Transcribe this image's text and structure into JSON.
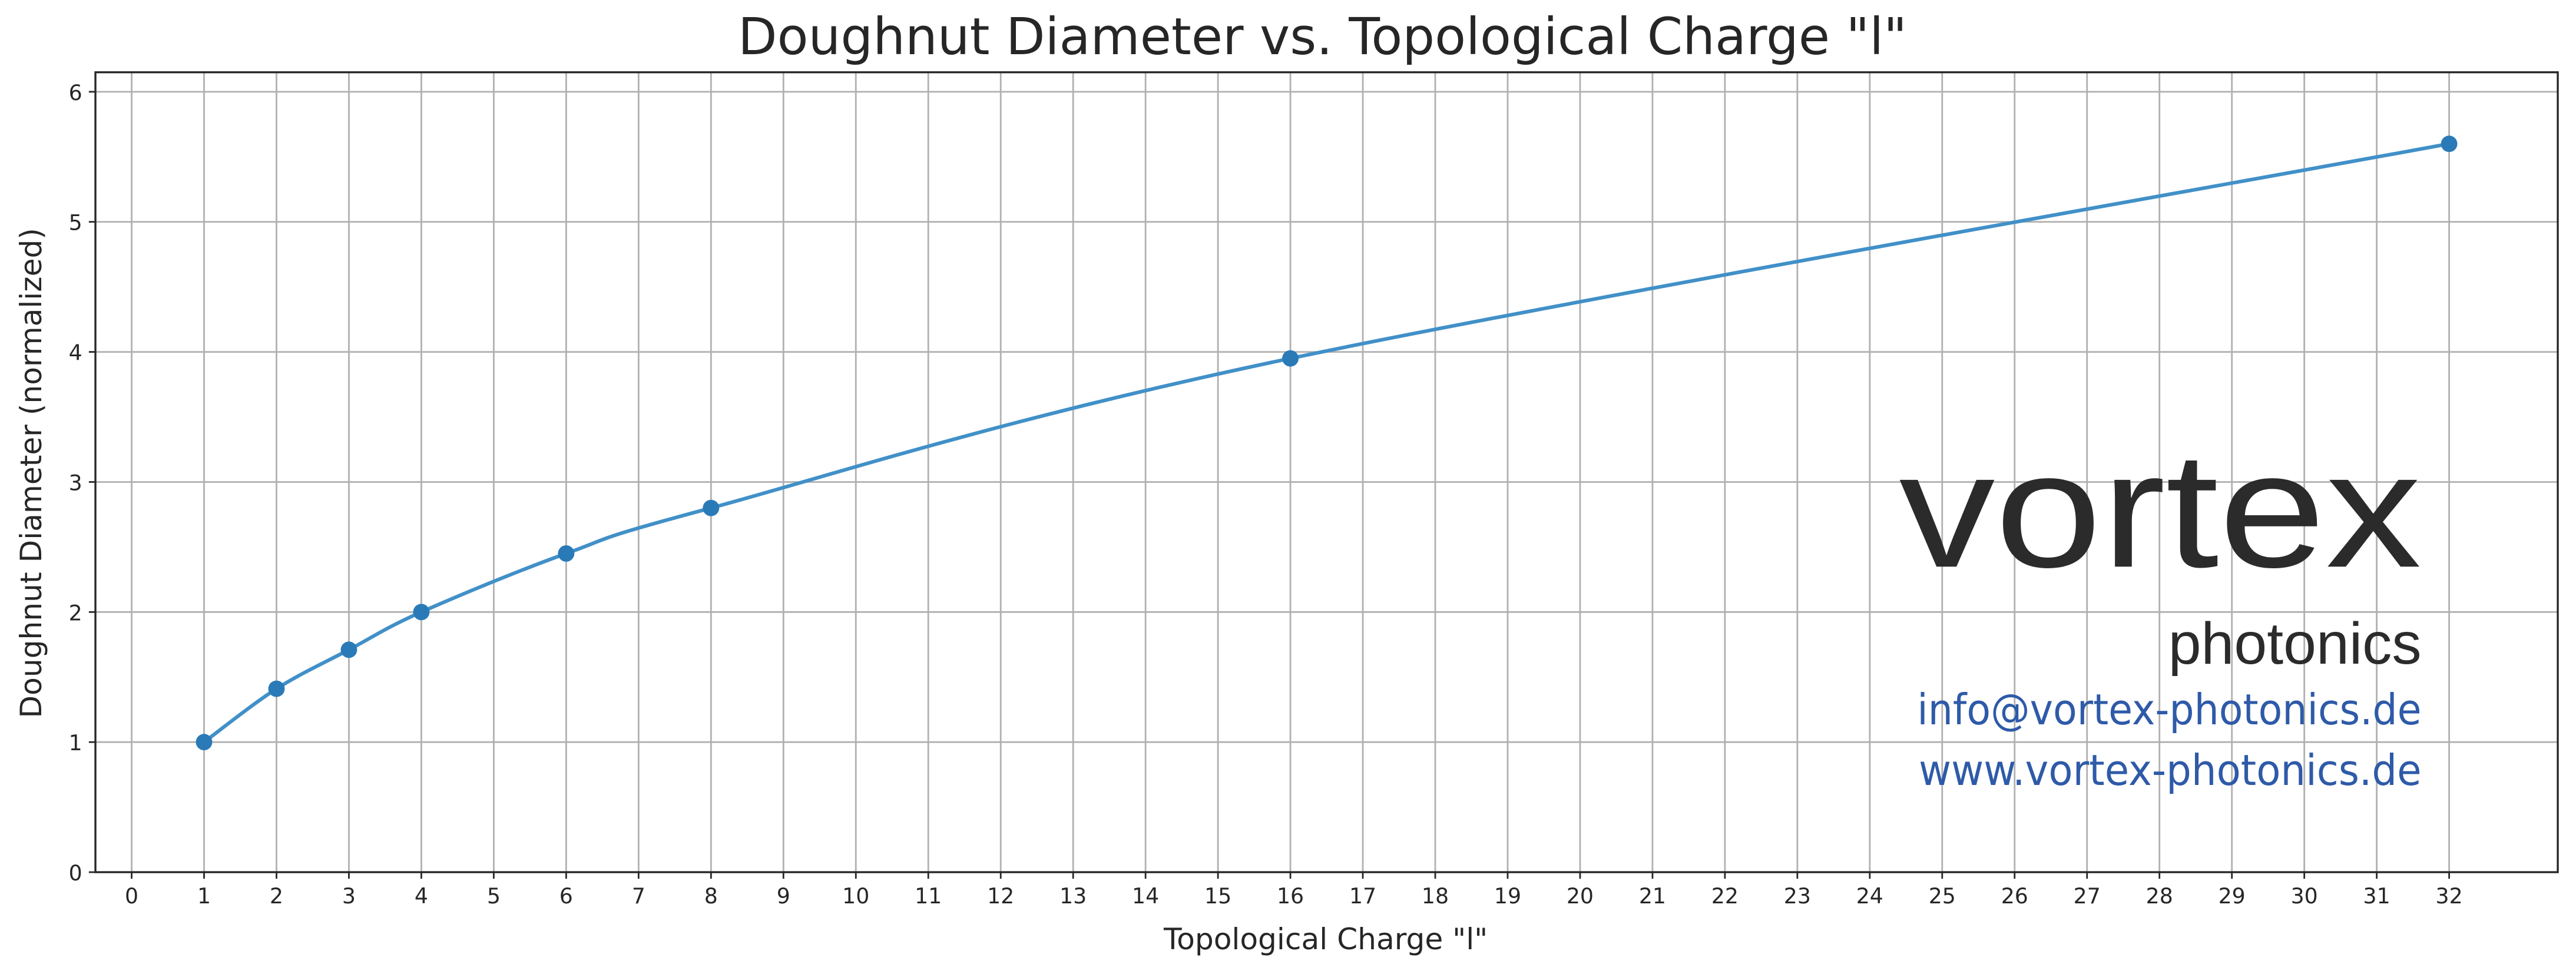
{
  "chart_data": {
    "type": "line",
    "title": "Doughnut Diameter vs. Topological Charge \"l\"",
    "xlabel": "Topological Charge \"l\"",
    "ylabel": "Doughnut Diameter (normalized)",
    "x": [
      1,
      2,
      3,
      4,
      6,
      8,
      16,
      32
    ],
    "y": [
      1.0,
      1.41,
      1.71,
      2.0,
      2.45,
      2.8,
      3.95,
      5.6
    ],
    "xlim": [
      -0.5,
      33.5
    ],
    "ylim": [
      0,
      6.15
    ],
    "xticks": [
      "0",
      "1",
      "2",
      "3",
      "4",
      "5",
      "6",
      "7",
      "8",
      "9",
      "10",
      "11",
      "12",
      "13",
      "14",
      "15",
      "16",
      "17",
      "18",
      "19",
      "20",
      "21",
      "22",
      "23",
      "24",
      "25",
      "26",
      "27",
      "28",
      "29",
      "30",
      "31",
      "32"
    ],
    "yticks": [
      "0",
      "1",
      "2",
      "3",
      "4",
      "5",
      "6"
    ],
    "grid": true,
    "markers": true,
    "line_color": "#4190c8",
    "marker_color": "#2a7ab8"
  },
  "watermark": {
    "brand": "vortex",
    "brand_sub": "photonics",
    "email": "info@vortex-photonics.de",
    "website": "www.vortex-photonics.de",
    "brand_color": "#2b2b2b",
    "contact_color": "#2e5aa8"
  }
}
